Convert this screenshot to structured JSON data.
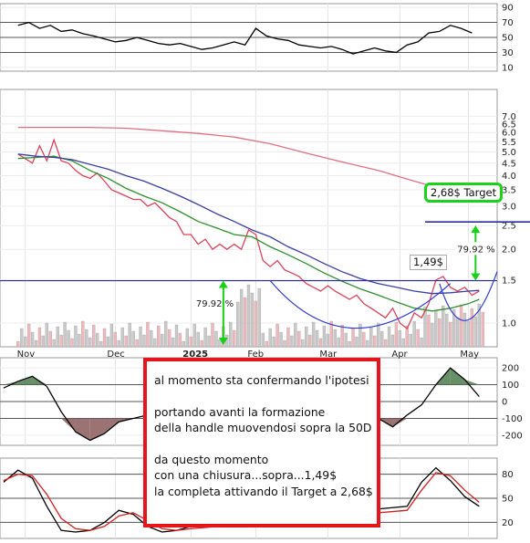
{
  "chart_data": [
    {
      "type": "line",
      "panel": "rsi",
      "y_ticks": [
        90,
        70,
        50,
        30,
        10
      ],
      "ylim": [
        5,
        95
      ],
      "reference_lines": [
        70,
        50,
        30
      ],
      "series": [
        {
          "color": "#000000",
          "x": [
            0,
            3,
            6,
            9,
            12,
            15,
            18,
            21,
            24,
            27,
            30,
            33,
            36,
            39,
            42,
            45,
            48,
            51,
            54,
            57,
            60,
            63,
            66,
            69,
            72,
            75,
            78,
            81,
            84,
            87,
            90,
            93,
            96,
            99,
            102,
            105,
            108,
            111,
            114,
            117,
            120,
            123,
            126
          ],
          "y": [
            66,
            70,
            62,
            66,
            58,
            60,
            55,
            52,
            48,
            44,
            46,
            50,
            46,
            42,
            40,
            42,
            38,
            34,
            36,
            40,
            44,
            40,
            62,
            52,
            48,
            46,
            40,
            38,
            36,
            38,
            34,
            28,
            32,
            36,
            32,
            30,
            40,
            44,
            56,
            58,
            66,
            62,
            56
          ]
        }
      ]
    },
    {
      "type": "line",
      "panel": "price",
      "scale": "log",
      "y_ticks": [
        7.0,
        6.5,
        6.0,
        5.5,
        5.0,
        4.5,
        4.0,
        3.5,
        3.0,
        2.5,
        2.0,
        1.5,
        1.0
      ],
      "ylim": [
        0.8,
        9.0
      ],
      "x_ticks": [
        {
          "label": "Nov",
          "x": 2
        },
        {
          "label": "Dec",
          "x": 27
        },
        {
          "label": "2025",
          "x": 48
        },
        {
          "label": "Feb",
          "x": 66
        },
        {
          "label": "Mar",
          "x": 86
        },
        {
          "label": "Apr",
          "x": 106
        },
        {
          "label": "May",
          "x": 125
        }
      ],
      "xlim": [
        -5,
        133
      ],
      "annotations": {
        "target_label": "2,68$ Target",
        "target_price": 2.68,
        "breakout_label": "1,49$",
        "breakout_price": 1.49,
        "percent_label": "79.92 %"
      },
      "series": [
        {
          "color": "#d9435a",
          "x": [
            0,
            2,
            4,
            6,
            8,
            10,
            12,
            14,
            16,
            18,
            20,
            22,
            24,
            26,
            28,
            30,
            32,
            34,
            36,
            38,
            40,
            42,
            44,
            46,
            48,
            50,
            52,
            54,
            56,
            58,
            60,
            62,
            64,
            66,
            68,
            70,
            72,
            74,
            76,
            78,
            80,
            82,
            84,
            86,
            88,
            90,
            92,
            94,
            96,
            98,
            100,
            102,
            104,
            106,
            108,
            110,
            112,
            114,
            116,
            118,
            120,
            122,
            124,
            126,
            128
          ],
          "y": [
            4.9,
            4.7,
            4.5,
            5.3,
            4.6,
            5.6,
            4.6,
            4.5,
            4.2,
            4.0,
            3.9,
            4.1,
            3.8,
            3.5,
            3.4,
            3.3,
            3.2,
            3.2,
            3.0,
            3.1,
            2.9,
            2.7,
            2.6,
            2.3,
            2.3,
            2.1,
            2.2,
            2.0,
            2.1,
            2.0,
            2.1,
            2.0,
            2.4,
            2.3,
            1.8,
            1.7,
            1.8,
            1.65,
            1.6,
            1.55,
            1.45,
            1.4,
            1.35,
            1.42,
            1.35,
            1.3,
            1.25,
            1.3,
            1.2,
            1.15,
            1.1,
            1.05,
            1.15,
            1.0,
            0.95,
            1.1,
            1.05,
            1.2,
            1.5,
            1.55,
            1.4,
            1.35,
            1.4,
            1.3,
            1.35
          ]
        },
        {
          "color": "#2f8f2f",
          "x": [
            0,
            5,
            10,
            15,
            20,
            25,
            30,
            35,
            40,
            45,
            50,
            55,
            60,
            65,
            70,
            75,
            80,
            85,
            90,
            95,
            100,
            105,
            110,
            115,
            120,
            125,
            128
          ],
          "y": [
            4.7,
            4.75,
            4.8,
            4.6,
            4.2,
            3.9,
            3.55,
            3.3,
            3.1,
            2.85,
            2.6,
            2.45,
            2.3,
            2.25,
            2.05,
            1.9,
            1.75,
            1.6,
            1.48,
            1.38,
            1.3,
            1.22,
            1.15,
            1.12,
            1.15,
            1.2,
            1.25
          ]
        },
        {
          "color": "#3a3fa0",
          "x": [
            0,
            5,
            10,
            15,
            20,
            25,
            30,
            35,
            40,
            45,
            50,
            55,
            60,
            65,
            70,
            75,
            80,
            85,
            90,
            95,
            100,
            105,
            110,
            115,
            120,
            125,
            128
          ],
          "y": [
            4.9,
            4.8,
            4.75,
            4.65,
            4.45,
            4.25,
            4.0,
            3.8,
            3.55,
            3.3,
            3.05,
            2.8,
            2.6,
            2.4,
            2.25,
            2.05,
            1.9,
            1.75,
            1.62,
            1.52,
            1.45,
            1.4,
            1.35,
            1.32,
            1.33,
            1.35,
            1.36
          ]
        },
        {
          "color": "#e07080",
          "x": [
            0,
            10,
            20,
            30,
            40,
            50,
            60,
            70,
            80,
            90,
            100,
            110,
            120,
            125,
            128
          ],
          "y": [
            6.3,
            6.3,
            6.3,
            6.25,
            6.1,
            5.95,
            5.75,
            5.4,
            4.95,
            4.55,
            4.2,
            3.8,
            3.45,
            3.25,
            3.15
          ]
        }
      ]
    },
    {
      "type": "line",
      "panel": "cci",
      "y_ticks": [
        200,
        100,
        0,
        -100,
        -200
      ],
      "ylim": [
        -260,
        260
      ],
      "reference_lines": [
        100,
        0,
        -100
      ],
      "series": [
        {
          "color": "#000000",
          "x": [
            -4,
            0,
            4,
            8,
            12,
            16,
            20,
            24,
            28,
            32,
            36,
            40,
            44,
            48,
            52,
            56,
            60,
            64,
            68,
            72,
            76,
            80,
            84,
            88,
            92,
            96,
            100,
            104,
            108,
            112,
            116,
            120,
            124,
            128
          ],
          "y": [
            80,
            120,
            150,
            90,
            -60,
            -180,
            -230,
            -190,
            -120,
            -100,
            -80,
            -60,
            -40,
            20,
            50,
            40,
            30,
            10,
            -20,
            10,
            20,
            30,
            20,
            10,
            0,
            -40,
            -100,
            -150,
            -80,
            -20,
            100,
            200,
            130,
            30
          ]
        }
      ]
    },
    {
      "type": "line",
      "panel": "stochastic",
      "y_ticks": [
        80,
        50,
        20
      ],
      "ylim": [
        0,
        100
      ],
      "reference_lines": [
        80,
        50,
        20
      ],
      "series": [
        {
          "color": "#000000",
          "x": [
            -4,
            0,
            4,
            8,
            12,
            16,
            20,
            24,
            28,
            32,
            36,
            40,
            44,
            48,
            108,
            112,
            116,
            120,
            124,
            128
          ],
          "y": [
            70,
            85,
            75,
            40,
            10,
            8,
            10,
            20,
            35,
            30,
            15,
            8,
            10,
            15,
            40,
            70,
            88,
            72,
            52,
            40
          ]
        },
        {
          "color": "#d42020",
          "x": [
            -4,
            0,
            4,
            8,
            12,
            16,
            20,
            24,
            28,
            32,
            36,
            40,
            44,
            48,
            108,
            112,
            116,
            120,
            124,
            128
          ],
          "y": [
            72,
            80,
            78,
            55,
            25,
            12,
            10,
            15,
            28,
            32,
            22,
            12,
            10,
            12,
            35,
            60,
            82,
            78,
            60,
            45
          ]
        }
      ]
    }
  ],
  "annotation_text": {
    "line1": "al momento sta confermando l'ipotesi",
    "line2": "portando avanti la formazione",
    "line3": "della handle muovendosi sopra la 50D",
    "line4": "da questo momento",
    "line5": "con una chiusura...sopra...1,49$",
    "line6": "la completa attivando il Target a 2,68$"
  }
}
